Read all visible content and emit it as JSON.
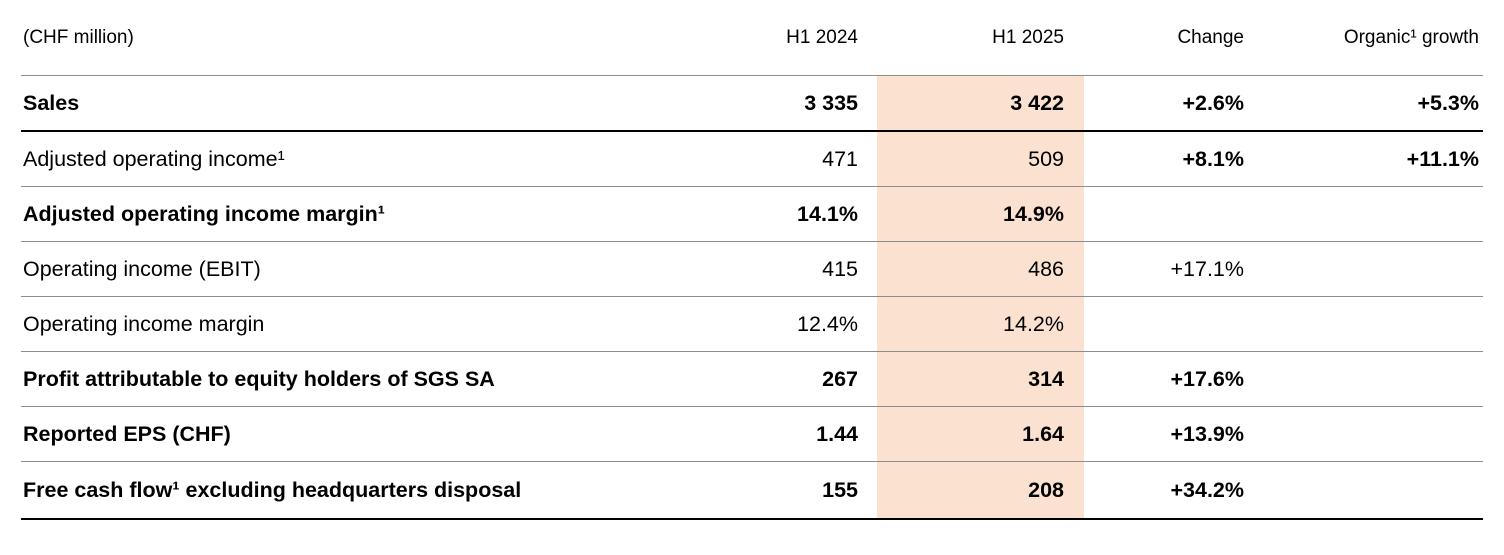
{
  "table": {
    "unit_label": "(CHF million)",
    "highlight_color": "#fae1d0",
    "columns": {
      "h1_2024": "H1 2024",
      "h1_2025": "H1 2025",
      "change": "Change",
      "organic_growth": "Organic¹ growth"
    },
    "rows": [
      {
        "label": "Sales",
        "bold": true,
        "change_bold": true,
        "h1_2024": "3 335",
        "h1_2025": "3 422",
        "change": "+2.6%",
        "organic_growth": "+5.3%"
      },
      {
        "label": "Adjusted operating income¹",
        "bold": false,
        "change_bold": true,
        "h1_2024": "471",
        "h1_2025": "509",
        "change": "+8.1%",
        "organic_growth": "+11.1%"
      },
      {
        "label": "Adjusted operating income margin¹",
        "bold": true,
        "change_bold": false,
        "h1_2024": "14.1%",
        "h1_2025": "14.9%",
        "change": "",
        "organic_growth": ""
      },
      {
        "label": "Operating income (EBIT)",
        "bold": false,
        "change_bold": false,
        "h1_2024": "415",
        "h1_2025": "486",
        "change": "+17.1%",
        "organic_growth": ""
      },
      {
        "label": "Operating income margin",
        "bold": false,
        "change_bold": false,
        "h1_2024": "12.4%",
        "h1_2025": "14.2%",
        "change": "",
        "organic_growth": ""
      },
      {
        "label": "Profit attributable to equity holders of SGS SA",
        "bold": true,
        "change_bold": true,
        "h1_2024": "267",
        "h1_2025": "314",
        "change": "+17.6%",
        "organic_growth": ""
      },
      {
        "label": "Reported EPS (CHF)",
        "bold": true,
        "change_bold": true,
        "h1_2024": "1.44",
        "h1_2025": "1.64",
        "change": "+13.9%",
        "organic_growth": ""
      },
      {
        "label": "Free cash flow¹ excluding headquarters disposal",
        "bold": true,
        "change_bold": true,
        "h1_2024": "155",
        "h1_2025": "208",
        "change": "+34.2%",
        "organic_growth": ""
      }
    ]
  }
}
